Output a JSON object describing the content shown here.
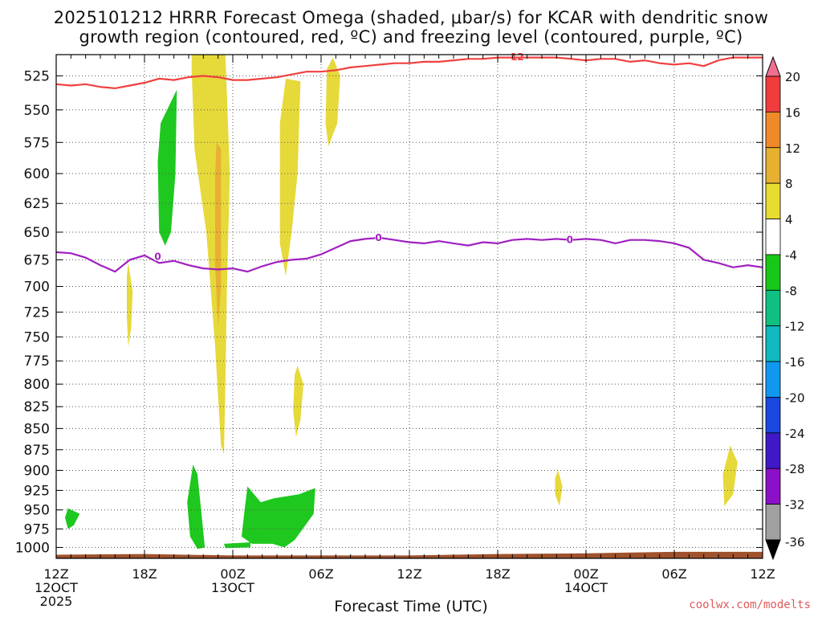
{
  "title_line1": "2025101212 HRRR Forecast Omega (shaded, μbar/s) for KCAR with dendritic snow",
  "title_line2": "growth region (contoured, red, ºC) and freezing level (contoured, purple, ºC)",
  "credit": "coolwx.com/modelts",
  "chart_data": {
    "type": "time-height cross section",
    "xlabel": "Forecast Time (UTC)",
    "ylabel": "",
    "x_ticks": [
      {
        "hour": 0,
        "labels": [
          "12Z",
          "12OCT",
          "2025"
        ]
      },
      {
        "hour": 6,
        "labels": [
          "18Z"
        ]
      },
      {
        "hour": 12,
        "labels": [
          "00Z",
          "13OCT"
        ]
      },
      {
        "hour": 18,
        "labels": [
          "06Z"
        ]
      },
      {
        "hour": 24,
        "labels": [
          "12Z"
        ]
      },
      {
        "hour": 30,
        "labels": [
          "18Z"
        ]
      },
      {
        "hour": 36,
        "labels": [
          "00Z",
          "14OCT"
        ]
      },
      {
        "hour": 42,
        "labels": [
          "06Z"
        ]
      },
      {
        "hour": 48,
        "labels": [
          "12Z"
        ]
      }
    ],
    "x_range_hours": [
      0,
      48
    ],
    "y_levels_mb": [
      525,
      550,
      575,
      600,
      625,
      650,
      675,
      700,
      725,
      750,
      775,
      800,
      825,
      850,
      875,
      900,
      925,
      950,
      975,
      1000
    ],
    "y_range_mb": [
      510,
      1015
    ],
    "y_scale": "log-pressure",
    "grid": true,
    "colorbar": {
      "labels": [
        20,
        16,
        12,
        8,
        4,
        -4,
        -8,
        -12,
        -16,
        -20,
        -24,
        -28,
        -32,
        -36
      ],
      "colors": [
        "#f07090",
        "#f03c3c",
        "#f08a28",
        "#e8b030",
        "#e8dc30",
        "#ffffff",
        "#18c818",
        "#10c080",
        "#10b8c0",
        "#1098f0",
        "#1848e0",
        "#4018c8",
        "#8c10c8",
        "#a0a0a0",
        "#000000"
      ]
    },
    "dgz_contour_label": "-12",
    "dgz_minus12_line": {
      "color": "#f04040",
      "points": [
        [
          0,
          531
        ],
        [
          1,
          532
        ],
        [
          2,
          531
        ],
        [
          3,
          533
        ],
        [
          4,
          534
        ],
        [
          5,
          532
        ],
        [
          6,
          530
        ],
        [
          7,
          527
        ],
        [
          8,
          528
        ],
        [
          9,
          526
        ],
        [
          10,
          525
        ],
        [
          11,
          526
        ],
        [
          12,
          528
        ],
        [
          13,
          528
        ],
        [
          14,
          527
        ],
        [
          15,
          526
        ],
        [
          16,
          524
        ],
        [
          17,
          522
        ],
        [
          18,
          522
        ],
        [
          19,
          521
        ],
        [
          20,
          519
        ],
        [
          21,
          518
        ],
        [
          22,
          517
        ],
        [
          23,
          516
        ],
        [
          24,
          516
        ],
        [
          25,
          515
        ],
        [
          26,
          515
        ],
        [
          27,
          514
        ],
        [
          28,
          513
        ],
        [
          29,
          513
        ],
        [
          30,
          512
        ],
        [
          31,
          512
        ],
        [
          32,
          512
        ],
        [
          33,
          512
        ],
        [
          34,
          512
        ],
        [
          35,
          513
        ],
        [
          36,
          514
        ],
        [
          37,
          513
        ],
        [
          38,
          513
        ],
        [
          39,
          515
        ],
        [
          40,
          514
        ],
        [
          41,
          516
        ],
        [
          42,
          517
        ],
        [
          43,
          516
        ],
        [
          44,
          518
        ],
        [
          45,
          514
        ],
        [
          46,
          512
        ],
        [
          47,
          512
        ],
        [
          48,
          512
        ]
      ]
    },
    "freezing_level_line": {
      "color": "#a020c0",
      "label": "0",
      "points": [
        [
          0,
          668
        ],
        [
          1,
          669
        ],
        [
          2,
          673
        ],
        [
          3,
          680
        ],
        [
          4,
          686
        ],
        [
          5,
          675
        ],
        [
          6,
          671
        ],
        [
          7,
          678
        ],
        [
          8,
          676
        ],
        [
          9,
          680
        ],
        [
          10,
          683
        ],
        [
          11,
          684
        ],
        [
          12,
          683
        ],
        [
          13,
          686
        ],
        [
          14,
          681
        ],
        [
          15,
          677
        ],
        [
          16,
          675
        ],
        [
          17,
          674
        ],
        [
          18,
          670
        ],
        [
          19,
          664
        ],
        [
          20,
          658
        ],
        [
          21,
          656
        ],
        [
          22,
          655
        ],
        [
          23,
          657
        ],
        [
          24,
          659
        ],
        [
          25,
          660
        ],
        [
          26,
          658
        ],
        [
          27,
          660
        ],
        [
          28,
          662
        ],
        [
          29,
          659
        ],
        [
          30,
          660
        ],
        [
          31,
          657
        ],
        [
          32,
          656
        ],
        [
          33,
          657
        ],
        [
          34,
          656
        ],
        [
          35,
          657
        ],
        [
          36,
          656
        ],
        [
          37,
          657
        ],
        [
          38,
          660
        ],
        [
          39,
          657
        ],
        [
          40,
          657
        ],
        [
          41,
          658
        ],
        [
          42,
          660
        ],
        [
          43,
          664
        ],
        [
          44,
          675
        ],
        [
          45,
          678
        ],
        [
          46,
          682
        ],
        [
          47,
          680
        ],
        [
          48,
          682
        ]
      ]
    },
    "omega_regions": [
      {
        "sign": "positive",
        "value": 4,
        "points": [
          [
            9.2,
            510
          ],
          [
            11.5,
            510
          ],
          [
            11.8,
            600
          ],
          [
            11.6,
            700
          ],
          [
            11.5,
            800
          ],
          [
            11.4,
            880
          ],
          [
            11.2,
            870
          ],
          [
            10.8,
            760
          ],
          [
            10.2,
            650
          ],
          [
            9.4,
            580
          ],
          [
            9.2,
            520
          ]
        ]
      },
      {
        "sign": "positive",
        "value": 8,
        "points": [
          [
            10.9,
            575
          ],
          [
            11.2,
            580
          ],
          [
            11.2,
            700
          ],
          [
            11.0,
            740
          ],
          [
            10.8,
            680
          ],
          [
            10.8,
            600
          ]
        ]
      },
      {
        "sign": "positive",
        "value": 4,
        "points": [
          [
            15.6,
            527
          ],
          [
            16.6,
            529
          ],
          [
            16.4,
            600
          ],
          [
            16.0,
            650
          ],
          [
            15.6,
            690
          ],
          [
            15.2,
            660
          ],
          [
            15.2,
            560
          ]
        ]
      },
      {
        "sign": "positive",
        "value": 4,
        "points": [
          [
            18.8,
            512
          ],
          [
            19.3,
            525
          ],
          [
            19.1,
            560
          ],
          [
            18.5,
            578
          ],
          [
            18.3,
            560
          ],
          [
            18.4,
            520
          ]
        ]
      },
      {
        "sign": "positive",
        "value": 4,
        "points": [
          [
            4.9,
            678
          ],
          [
            5.2,
            705
          ],
          [
            5.1,
            740
          ],
          [
            4.9,
            760
          ],
          [
            4.8,
            730
          ],
          [
            4.8,
            690
          ]
        ]
      },
      {
        "sign": "positive",
        "value": 4,
        "points": [
          [
            16.4,
            780
          ],
          [
            16.8,
            800
          ],
          [
            16.6,
            840
          ],
          [
            16.3,
            860
          ],
          [
            16.1,
            830
          ],
          [
            16.2,
            790
          ]
        ]
      },
      {
        "sign": "positive",
        "value": 4,
        "points": [
          [
            34.1,
            900
          ],
          [
            34.4,
            920
          ],
          [
            34.2,
            945
          ],
          [
            33.9,
            930
          ],
          [
            33.9,
            910
          ]
        ]
      },
      {
        "sign": "positive",
        "value": 4,
        "points": [
          [
            45.8,
            870
          ],
          [
            46.3,
            890
          ],
          [
            46.0,
            930
          ],
          [
            45.4,
            945
          ],
          [
            45.3,
            905
          ]
        ]
      },
      {
        "sign": "negative",
        "value": -4,
        "points": [
          [
            7.1,
            560
          ],
          [
            8.2,
            535
          ],
          [
            8.1,
            600
          ],
          [
            7.8,
            650
          ],
          [
            7.4,
            662
          ],
          [
            7.0,
            650
          ],
          [
            6.9,
            590
          ]
        ]
      },
      {
        "sign": "negative",
        "value": -4,
        "points": [
          [
            9.3,
            893
          ],
          [
            9.6,
            905
          ],
          [
            9.9,
            960
          ],
          [
            10.1,
            1000
          ],
          [
            9.6,
            1002
          ],
          [
            9.1,
            985
          ],
          [
            8.9,
            940
          ]
        ]
      },
      {
        "sign": "negative",
        "value": -4,
        "points": [
          [
            13.0,
            920
          ],
          [
            13.9,
            940
          ],
          [
            14.8,
            935
          ],
          [
            16.5,
            930
          ],
          [
            17.6,
            922
          ],
          [
            17.5,
            955
          ],
          [
            16.2,
            990
          ],
          [
            15.5,
            1000
          ],
          [
            14.7,
            995
          ],
          [
            13.3,
            995
          ],
          [
            12.6,
            985
          ],
          [
            12.8,
            950
          ]
        ]
      },
      {
        "sign": "negative",
        "value": -4,
        "points": [
          [
            11.4,
            995
          ],
          [
            13.2,
            993
          ],
          [
            13.2,
            1000
          ],
          [
            11.5,
            1001
          ]
        ]
      },
      {
        "sign": "negative",
        "value": -4,
        "points": [
          [
            0.8,
            948
          ],
          [
            1.6,
            955
          ],
          [
            1.2,
            970
          ],
          [
            0.8,
            975
          ],
          [
            0.6,
            960
          ]
        ]
      }
    ],
    "terrain": {
      "color": "#a0522d",
      "surface_mb": [
        [
          0,
          1010
        ],
        [
          6,
          1009
        ],
        [
          12,
          1011
        ],
        [
          24,
          1011
        ],
        [
          30,
          1009
        ],
        [
          36,
          1008
        ],
        [
          42,
          1006
        ],
        [
          48,
          1006
        ]
      ]
    }
  }
}
